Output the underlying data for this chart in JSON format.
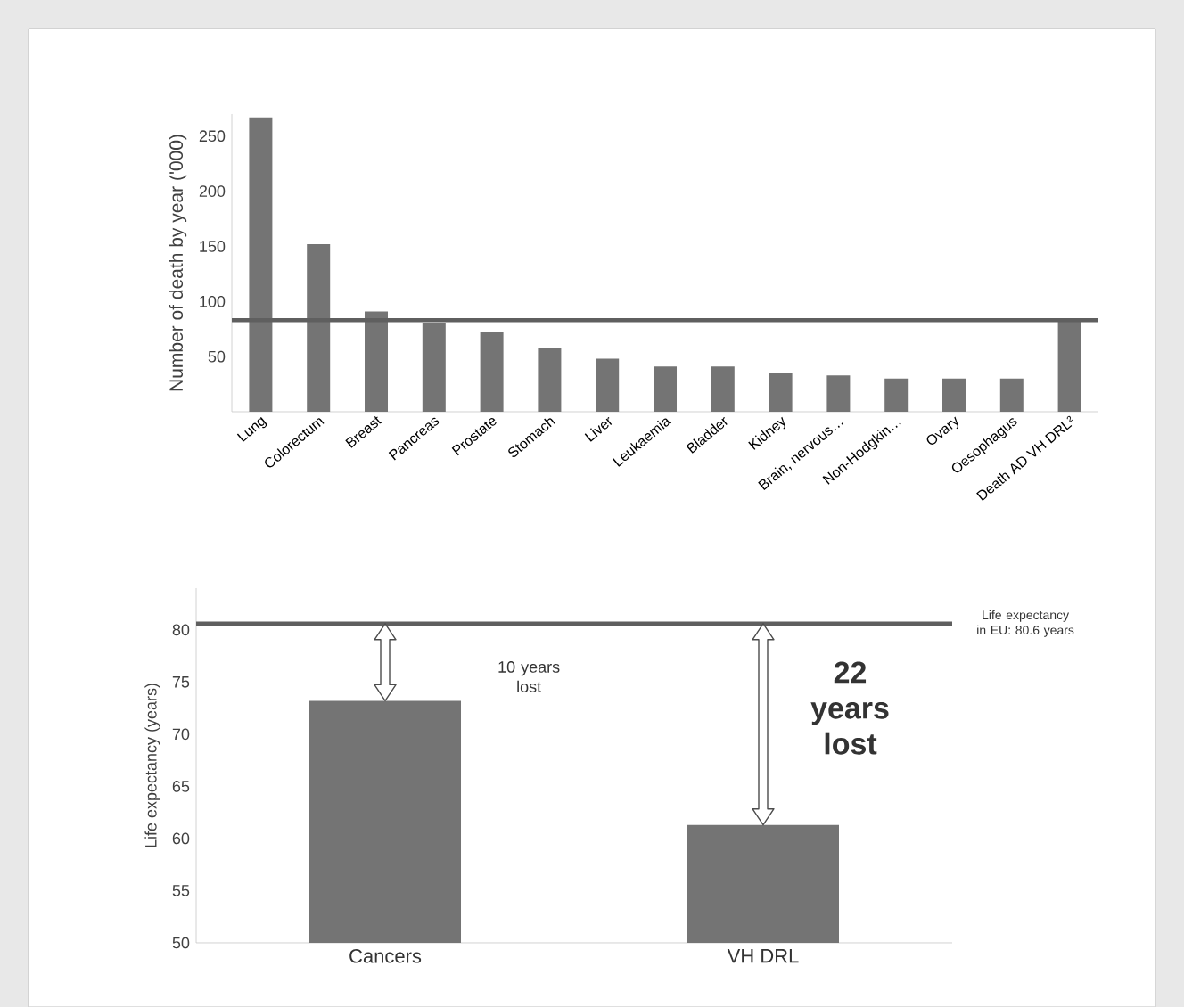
{
  "chart_data": [
    {
      "type": "bar",
      "ylabel": "Number of death by year ('000)",
      "categories": [
        "Lung",
        "Colorectum",
        "Breast",
        "Pancreas",
        "Prostate",
        "Stomach",
        "Liver",
        "Leukaemia",
        "Bladder",
        "Kidney",
        "Brain, nervous…",
        "Non-Hodgkin…",
        "Ovary",
        "Oesophagus",
        "Death AD VH DRL²"
      ],
      "values": [
        267,
        152,
        91,
        80,
        72,
        58,
        48,
        41,
        41,
        35,
        33,
        30,
        30,
        30,
        83
      ],
      "color": "#747474",
      "ylim": [
        0,
        270
      ],
      "yticks": [
        50,
        100,
        150,
        200,
        250
      ],
      "ref_lines": [
        {
          "axis": "y",
          "value": 83,
          "color": "#5f5f5f"
        }
      ]
    },
    {
      "type": "bar",
      "ylabel": "Life expectancy (years)",
      "categories": [
        "Cancers",
        "VH DRL"
      ],
      "values": [
        73.2,
        61.3
      ],
      "color": "#747474",
      "ylim": [
        50,
        84
      ],
      "yticks": [
        50,
        55,
        60,
        65,
        70,
        75,
        80
      ],
      "ref_lines": [
        {
          "axis": "y",
          "value": 80.6,
          "label": "Life expectancy in EU: 80.6 years",
          "color": "#5f5f5f"
        }
      ],
      "annotations": [
        "10 years lost",
        "22 years lost"
      ]
    }
  ]
}
